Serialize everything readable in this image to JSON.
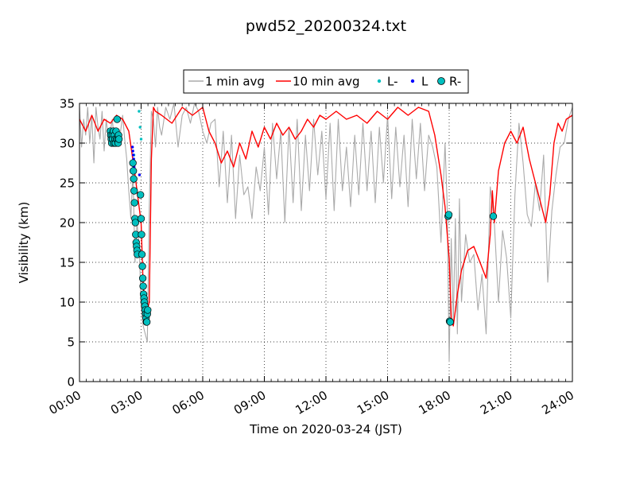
{
  "chart_data": {
    "type": "line",
    "title": "pwd52_20200324.txt",
    "xlabel": "Time on 2020-03-24 (JST)",
    "ylabel": "Visibility (km)",
    "xlim": [
      0,
      24
    ],
    "ylim": [
      0,
      35
    ],
    "x_ticks": [
      {
        "value": 0,
        "label": "00:00"
      },
      {
        "value": 3,
        "label": "03:00"
      },
      {
        "value": 6,
        "label": "06:00"
      },
      {
        "value": 9,
        "label": "09:00"
      },
      {
        "value": 12,
        "label": "12:00"
      },
      {
        "value": 15,
        "label": "15:00"
      },
      {
        "value": 18,
        "label": "18:00"
      },
      {
        "value": 21,
        "label": "21:00"
      },
      {
        "value": 24,
        "label": "24:00"
      }
    ],
    "y_ticks": [
      {
        "value": 0,
        "label": "0"
      },
      {
        "value": 5,
        "label": "5"
      },
      {
        "value": 10,
        "label": "10"
      },
      {
        "value": 15,
        "label": "15"
      },
      {
        "value": 20,
        "label": "20"
      },
      {
        "value": 25,
        "label": "25"
      },
      {
        "value": 30,
        "label": "30"
      },
      {
        "value": 35,
        "label": "35"
      }
    ],
    "grid": "dotted",
    "legend_position": "top-center",
    "series": [
      {
        "name": "1 min avg",
        "kind": "line",
        "color": "#aaaaaa",
        "x": [
          0.0,
          0.1,
          0.2,
          0.3,
          0.4,
          0.5,
          0.6,
          0.7,
          0.8,
          0.9,
          1.0,
          1.1,
          1.2,
          1.3,
          1.4,
          1.5,
          1.6,
          1.7,
          1.8,
          1.9,
          2.0,
          2.1,
          2.2,
          2.3,
          2.4,
          2.5,
          2.6,
          2.7,
          2.8,
          2.9,
          3.0,
          3.1,
          3.2,
          3.3,
          3.4,
          3.5,
          3.6,
          3.7,
          3.8,
          3.9,
          4.0,
          4.2,
          4.4,
          4.6,
          4.8,
          5.0,
          5.2,
          5.4,
          5.6,
          5.8,
          6.0,
          6.2,
          6.4,
          6.6,
          6.8,
          7.0,
          7.2,
          7.4,
          7.6,
          7.8,
          8.0,
          8.2,
          8.4,
          8.6,
          8.8,
          9.0,
          9.2,
          9.4,
          9.6,
          9.8,
          10.0,
          10.2,
          10.4,
          10.6,
          10.8,
          11.0,
          11.2,
          11.4,
          11.6,
          11.8,
          12.0,
          12.2,
          12.4,
          12.6,
          12.8,
          13.0,
          13.2,
          13.4,
          13.6,
          13.8,
          14.0,
          14.2,
          14.4,
          14.6,
          14.8,
          15.0,
          15.2,
          15.4,
          15.6,
          15.8,
          16.0,
          16.2,
          16.4,
          16.6,
          16.8,
          17.0,
          17.2,
          17.4,
          17.6,
          17.8,
          17.9,
          18.0,
          18.1,
          18.2,
          18.3,
          18.4,
          18.5,
          18.6,
          18.8,
          19.0,
          19.2,
          19.4,
          19.6,
          19.8,
          20.0,
          20.2,
          20.4,
          20.6,
          20.8,
          21.0,
          21.2,
          21.4,
          21.6,
          21.8,
          22.0,
          22.2,
          22.4,
          22.6,
          22.8,
          23.0,
          23.2,
          23.4,
          23.6,
          23.8,
          24.0
        ],
        "y": [
          34.5,
          29.5,
          33.0,
          31.0,
          34.5,
          30.0,
          33.5,
          27.5,
          34.5,
          32.0,
          30.5,
          34.0,
          29.0,
          33.0,
          30.5,
          31.5,
          33.0,
          30.0,
          31.0,
          30.0,
          31.5,
          33.5,
          30.5,
          28.0,
          24.0,
          20.5,
          26.5,
          15.0,
          20.0,
          17.5,
          9.5,
          7.0,
          6.0,
          5.0,
          22.0,
          34.0,
          33.0,
          29.5,
          34.5,
          32.0,
          31.0,
          34.5,
          33.0,
          35.0,
          29.5,
          33.5,
          34.5,
          32.5,
          35.0,
          34.0,
          31.5,
          30.0,
          32.5,
          33.0,
          24.5,
          31.5,
          22.5,
          31.0,
          20.5,
          28.5,
          23.5,
          24.5,
          20.5,
          27.0,
          24.0,
          29.5,
          21.0,
          32.5,
          25.5,
          31.5,
          20.0,
          32.0,
          22.5,
          33.0,
          21.5,
          31.0,
          24.0,
          33.0,
          26.0,
          31.5,
          23.0,
          32.5,
          21.5,
          33.0,
          24.0,
          29.5,
          22.0,
          31.0,
          23.5,
          32.5,
          24.0,
          31.5,
          22.5,
          32.0,
          25.0,
          33.5,
          23.0,
          32.0,
          24.5,
          31.0,
          22.0,
          33.0,
          25.5,
          32.5,
          24.0,
          31.0,
          29.5,
          27.0,
          17.5,
          30.0,
          22.5,
          2.5,
          18.0,
          7.5,
          20.5,
          6.0,
          23.0,
          10.0,
          18.5,
          15.0,
          16.0,
          9.0,
          13.5,
          6.0,
          24.5,
          20.0,
          10.0,
          19.0,
          15.5,
          8.0,
          23.5,
          32.5,
          27.5,
          21.0,
          19.5,
          25.0,
          21.5,
          28.5,
          12.5,
          21.5,
          26.0,
          29.5,
          30.0,
          33.0,
          34.5
        ]
      },
      {
        "name": "10 min avg",
        "kind": "line",
        "color": "#ff0000",
        "x": [
          0.0,
          0.3,
          0.6,
          0.9,
          1.2,
          1.5,
          1.8,
          2.1,
          2.4,
          2.7,
          3.0,
          3.1,
          3.2,
          3.3,
          3.4,
          3.5,
          3.6,
          3.7,
          4.0,
          4.5,
          5.0,
          5.5,
          6.0,
          6.3,
          6.6,
          6.9,
          7.2,
          7.5,
          7.8,
          8.1,
          8.4,
          8.7,
          9.0,
          9.3,
          9.6,
          9.9,
          10.2,
          10.5,
          10.8,
          11.1,
          11.4,
          11.7,
          12.0,
          12.5,
          13.0,
          13.5,
          14.0,
          14.5,
          15.0,
          15.5,
          16.0,
          16.5,
          17.0,
          17.3,
          17.6,
          17.8,
          18.0,
          18.1,
          18.2,
          18.3,
          18.4,
          18.6,
          18.9,
          19.2,
          19.5,
          19.8,
          20.0,
          20.1,
          20.2,
          20.4,
          20.7,
          21.0,
          21.3,
          21.6,
          21.9,
          22.1,
          22.3,
          22.5,
          22.7,
          22.9,
          23.1,
          23.3,
          23.5,
          23.7,
          24.0
        ],
        "y": [
          33.0,
          31.5,
          33.5,
          31.5,
          33.0,
          32.5,
          33.5,
          33.0,
          31.5,
          26.0,
          20.0,
          12.0,
          10.0,
          9.0,
          10.0,
          28.0,
          34.5,
          34.0,
          33.5,
          32.5,
          34.5,
          33.5,
          34.5,
          31.5,
          30.0,
          27.5,
          29.0,
          27.0,
          30.0,
          28.0,
          31.5,
          29.5,
          32.0,
          30.5,
          32.5,
          31.0,
          32.0,
          30.5,
          31.5,
          33.0,
          32.0,
          33.5,
          33.0,
          34.0,
          33.0,
          33.5,
          32.5,
          34.0,
          33.0,
          34.5,
          33.5,
          34.5,
          34.0,
          31.0,
          26.0,
          22.0,
          15.5,
          8.0,
          7.0,
          9.0,
          11.0,
          14.0,
          16.5,
          17.0,
          15.0,
          13.0,
          18.5,
          24.0,
          20.0,
          26.5,
          30.0,
          31.5,
          30.0,
          32.0,
          28.0,
          26.0,
          24.0,
          22.0,
          20.0,
          23.5,
          30.0,
          32.5,
          31.5,
          33.0,
          33.5
        ]
      },
      {
        "name": "L-",
        "kind": "markers",
        "marker": "small-dot",
        "color": "#00bfbf",
        "x": [
          2.6,
          2.63,
          2.65,
          2.9,
          2.95,
          3.0
        ],
        "y": [
          26.5,
          27.0,
          28.5,
          34.0,
          32.0,
          30.5
        ]
      },
      {
        "name": "L",
        "kind": "markers",
        "marker": "small-dot",
        "color": "#0000ff",
        "x": [
          2.58,
          2.6,
          2.62,
          2.64,
          2.66,
          2.92
        ],
        "y": [
          29.5,
          29.0,
          28.5,
          28.0,
          27.0,
          26.0
        ]
      },
      {
        "name": "R-",
        "kind": "markers",
        "marker": "circle",
        "color": "#00bfbf",
        "x": [
          1.5,
          1.52,
          1.55,
          1.57,
          1.6,
          1.62,
          1.65,
          1.68,
          1.7,
          1.73,
          1.75,
          1.78,
          1.8,
          1.83,
          1.86,
          1.88,
          1.9,
          1.92,
          2.6,
          2.62,
          2.64,
          2.66,
          2.68,
          2.7,
          2.72,
          2.74,
          2.76,
          2.78,
          2.8,
          2.82,
          2.97,
          3.0,
          3.02,
          3.04,
          3.06,
          3.08,
          3.1,
          3.12,
          3.14,
          3.16,
          3.18,
          3.2,
          3.22,
          3.24,
          3.26,
          3.28,
          3.3,
          3.32,
          17.95,
          17.98,
          18.02,
          18.05,
          20.15
        ],
        "y": [
          31.5,
          31.0,
          30.5,
          30.0,
          31.0,
          30.5,
          31.5,
          30.0,
          31.0,
          30.5,
          30.0,
          31.5,
          30.5,
          33.0,
          30.5,
          30.0,
          31.0,
          30.5,
          27.5,
          26.5,
          25.5,
          24.0,
          22.5,
          20.5,
          20.0,
          18.5,
          17.5,
          17.0,
          16.5,
          16.0,
          23.5,
          20.5,
          18.5,
          16.0,
          14.5,
          13.0,
          12.0,
          11.0,
          10.5,
          10.0,
          9.5,
          9.0,
          8.5,
          8.0,
          7.5,
          7.5,
          8.5,
          9.0,
          20.8,
          21.0,
          7.6,
          7.5,
          20.8
        ]
      }
    ]
  }
}
